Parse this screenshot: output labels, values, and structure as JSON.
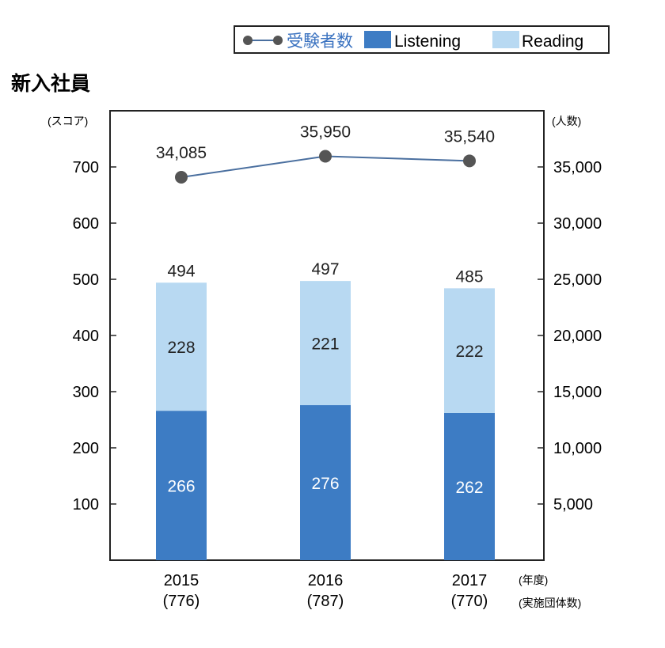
{
  "chart_data": {
    "type": "bar",
    "title": "新入社員",
    "categories": [
      "2015",
      "2016",
      "2017"
    ],
    "category_sublabels": [
      "(776)",
      "(787)",
      "(770)"
    ],
    "x_unit_label": "(年度)",
    "x_sub_unit_label": "(実施団体数)",
    "left_axis": {
      "unit_label": "(スコア)",
      "ylim": [
        0,
        800
      ],
      "ticks": [
        100,
        200,
        300,
        400,
        500,
        600,
        700
      ]
    },
    "right_axis": {
      "unit_label": "(人数)",
      "ylim": [
        0,
        40000
      ],
      "ticks": [
        5000,
        10000,
        15000,
        20000,
        25000,
        30000,
        35000
      ],
      "tick_labels": [
        "5,000",
        "10,000",
        "15,000",
        "20,000",
        "25,000",
        "30,000",
        "35,000"
      ]
    },
    "stacked": true,
    "series": [
      {
        "name": "Listening",
        "values": [
          266,
          276,
          262
        ],
        "labels": [
          "266",
          "276",
          "262"
        ],
        "color": "#3d7cc4"
      },
      {
        "name": "Reading",
        "values": [
          228,
          221,
          222
        ],
        "labels": [
          "228",
          "221",
          "222"
        ],
        "color": "#b8d9f2"
      }
    ],
    "totals": {
      "values": [
        494,
        497,
        485
      ],
      "labels": [
        "494",
        "497",
        "485"
      ]
    },
    "line_series": {
      "name": "受験者数",
      "axis": "right",
      "values": [
        34085,
        35950,
        35540
      ],
      "labels": [
        "34,085",
        "35,950",
        "35,540"
      ],
      "color": "#4a6f9f",
      "marker_color": "#555555"
    },
    "legend": {
      "placement": "top-right"
    },
    "grid": false
  }
}
